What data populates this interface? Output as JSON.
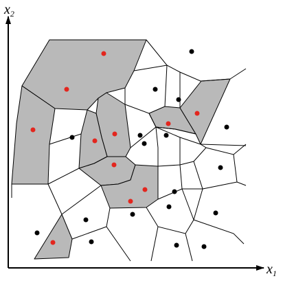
{
  "axes": {
    "y_label": "x",
    "y_subscript": "2",
    "x_label": "x",
    "x_subscript": "1"
  },
  "colors": {
    "shaded_cell": "#b9b9b9",
    "red_site": "#e3261e",
    "black_site": "#000000",
    "line": "#000000"
  },
  "site_classes": [
    "red",
    "black"
  ]
}
